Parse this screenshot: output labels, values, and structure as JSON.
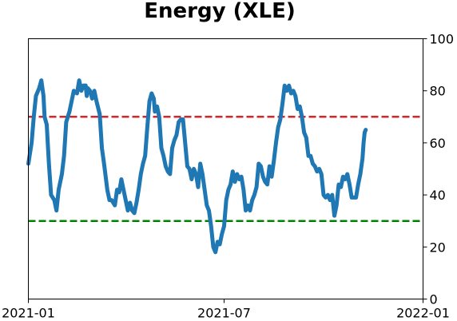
{
  "chart_data": {
    "type": "line",
    "title": "Energy (XLE)",
    "xlabel": "",
    "ylabel": "",
    "x_range": [
      "2021-01-01",
      "2022-01-01"
    ],
    "xticks": [
      "2021-01",
      "2021-07",
      "2022-01"
    ],
    "xtick_dates": [
      "2021-01-01",
      "2021-07-01",
      "2022-01-01"
    ],
    "ylim": [
      0,
      100
    ],
    "yticks": [
      0,
      20,
      40,
      60,
      80,
      100
    ],
    "y_axis_side": "right",
    "grid": false,
    "legend": "none",
    "reference_lines": [
      {
        "y": 70,
        "color": "#d62728",
        "style": "dashed"
      },
      {
        "y": 30,
        "color": "#008000",
        "style": "dashed"
      }
    ],
    "series": [
      {
        "color": "#1f77b4",
        "points": [
          [
            "2021-01-01",
            52
          ],
          [
            "2021-01-04",
            60
          ],
          [
            "2021-01-06",
            70
          ],
          [
            "2021-01-08",
            78
          ],
          [
            "2021-01-11",
            81
          ],
          [
            "2021-01-13",
            84
          ],
          [
            "2021-01-15",
            78
          ],
          [
            "2021-01-16",
            70
          ],
          [
            "2021-01-18",
            67
          ],
          [
            "2021-01-20",
            52
          ],
          [
            "2021-01-22",
            40
          ],
          [
            "2021-01-25",
            38
          ],
          [
            "2021-01-27",
            34
          ],
          [
            "2021-01-29",
            42
          ],
          [
            "2021-02-01",
            48
          ],
          [
            "2021-02-03",
            55
          ],
          [
            "2021-02-05",
            68
          ],
          [
            "2021-02-08",
            72
          ],
          [
            "2021-02-10",
            76
          ],
          [
            "2021-02-12",
            80
          ],
          [
            "2021-02-15",
            79
          ],
          [
            "2021-02-17",
            84
          ],
          [
            "2021-02-19",
            80
          ],
          [
            "2021-02-21",
            82
          ],
          [
            "2021-02-23",
            82
          ],
          [
            "2021-02-24",
            78
          ],
          [
            "2021-02-25",
            81
          ],
          [
            "2021-02-27",
            80
          ],
          [
            "2021-03-01",
            77
          ],
          [
            "2021-03-03",
            80
          ],
          [
            "2021-03-05",
            76
          ],
          [
            "2021-03-08",
            71
          ],
          [
            "2021-03-10",
            58
          ],
          [
            "2021-03-12",
            52
          ],
          [
            "2021-03-15",
            42
          ],
          [
            "2021-03-17",
            38
          ],
          [
            "2021-03-19",
            38
          ],
          [
            "2021-03-22",
            36
          ],
          [
            "2021-03-24",
            42
          ],
          [
            "2021-03-26",
            41
          ],
          [
            "2021-03-28",
            46
          ],
          [
            "2021-03-30",
            42
          ],
          [
            "2021-04-01",
            38
          ],
          [
            "2021-04-03",
            34
          ],
          [
            "2021-04-05",
            37
          ],
          [
            "2021-04-07",
            34
          ],
          [
            "2021-04-09",
            33
          ],
          [
            "2021-04-11",
            37
          ],
          [
            "2021-04-13",
            42
          ],
          [
            "2021-04-15",
            48
          ],
          [
            "2021-04-17",
            52
          ],
          [
            "2021-04-19",
            55
          ],
          [
            "2021-04-21",
            66
          ],
          [
            "2021-04-23",
            76
          ],
          [
            "2021-04-25",
            79
          ],
          [
            "2021-04-27",
            77
          ],
          [
            "2021-04-28",
            72
          ],
          [
            "2021-04-30",
            74
          ],
          [
            "2021-05-02",
            70
          ],
          [
            "2021-05-04",
            58
          ],
          [
            "2021-05-06",
            55
          ],
          [
            "2021-05-08",
            51
          ],
          [
            "2021-05-10",
            49
          ],
          [
            "2021-05-12",
            48
          ],
          [
            "2021-05-14",
            58
          ],
          [
            "2021-05-16",
            61
          ],
          [
            "2021-05-18",
            63
          ],
          [
            "2021-05-20",
            68
          ],
          [
            "2021-05-22",
            69
          ],
          [
            "2021-05-24",
            69
          ],
          [
            "2021-05-26",
            60
          ],
          [
            "2021-05-28",
            51
          ],
          [
            "2021-05-30",
            50
          ],
          [
            "2021-06-01",
            46
          ],
          [
            "2021-06-03",
            50
          ],
          [
            "2021-06-05",
            48
          ],
          [
            "2021-06-07",
            43
          ],
          [
            "2021-06-09",
            52
          ],
          [
            "2021-06-11",
            48
          ],
          [
            "2021-06-13",
            42
          ],
          [
            "2021-06-15",
            36
          ],
          [
            "2021-06-17",
            34
          ],
          [
            "2021-06-19",
            28
          ],
          [
            "2021-06-21",
            20
          ],
          [
            "2021-06-23",
            18
          ],
          [
            "2021-06-25",
            22
          ],
          [
            "2021-06-27",
            21
          ],
          [
            "2021-06-29",
            25
          ],
          [
            "2021-07-01",
            28
          ],
          [
            "2021-07-03",
            38
          ],
          [
            "2021-07-05",
            42
          ],
          [
            "2021-07-07",
            44
          ],
          [
            "2021-07-09",
            49
          ],
          [
            "2021-07-11",
            45
          ],
          [
            "2021-07-13",
            48
          ],
          [
            "2021-07-15",
            46
          ],
          [
            "2021-07-17",
            47
          ],
          [
            "2021-07-19",
            42
          ],
          [
            "2021-07-21",
            34
          ],
          [
            "2021-07-23",
            36
          ],
          [
            "2021-07-25",
            34
          ],
          [
            "2021-07-27",
            38
          ],
          [
            "2021-07-29",
            40
          ],
          [
            "2021-07-31",
            43
          ],
          [
            "2021-08-02",
            52
          ],
          [
            "2021-08-04",
            51
          ],
          [
            "2021-08-06",
            47
          ],
          [
            "2021-08-08",
            45
          ],
          [
            "2021-08-10",
            44
          ],
          [
            "2021-08-12",
            51
          ],
          [
            "2021-08-14",
            47
          ],
          [
            "2021-08-16",
            53
          ],
          [
            "2021-08-18",
            60
          ],
          [
            "2021-08-20",
            66
          ],
          [
            "2021-08-22",
            69
          ],
          [
            "2021-08-24",
            75
          ],
          [
            "2021-08-26",
            82
          ],
          [
            "2021-08-28",
            80
          ],
          [
            "2021-08-30",
            82
          ],
          [
            "2021-09-01",
            79
          ],
          [
            "2021-09-03",
            80
          ],
          [
            "2021-09-05",
            78
          ],
          [
            "2021-09-07",
            73
          ],
          [
            "2021-09-09",
            74
          ],
          [
            "2021-09-11",
            70
          ],
          [
            "2021-09-13",
            64
          ],
          [
            "2021-09-15",
            62
          ],
          [
            "2021-09-17",
            55
          ],
          [
            "2021-09-19",
            55
          ],
          [
            "2021-09-21",
            52
          ],
          [
            "2021-09-23",
            51
          ],
          [
            "2021-09-25",
            49
          ],
          [
            "2021-09-27",
            50
          ],
          [
            "2021-09-29",
            48
          ],
          [
            "2021-10-01",
            40
          ],
          [
            "2021-10-03",
            39
          ],
          [
            "2021-10-05",
            40
          ],
          [
            "2021-10-07",
            38
          ],
          [
            "2021-10-09",
            40
          ],
          [
            "2021-10-11",
            32
          ],
          [
            "2021-10-13",
            36
          ],
          [
            "2021-10-15",
            44
          ],
          [
            "2021-10-17",
            43
          ],
          [
            "2021-10-19",
            47
          ],
          [
            "2021-10-21",
            46
          ],
          [
            "2021-10-23",
            48
          ],
          [
            "2021-10-25",
            44
          ],
          [
            "2021-10-27",
            39
          ],
          [
            "2021-10-29",
            39
          ],
          [
            "2021-10-31",
            39
          ],
          [
            "2021-11-02",
            44
          ],
          [
            "2021-11-04",
            48
          ],
          [
            "2021-11-06",
            54
          ],
          [
            "2021-11-07",
            60
          ],
          [
            "2021-11-08",
            64
          ],
          [
            "2021-11-09",
            65
          ]
        ]
      }
    ]
  }
}
